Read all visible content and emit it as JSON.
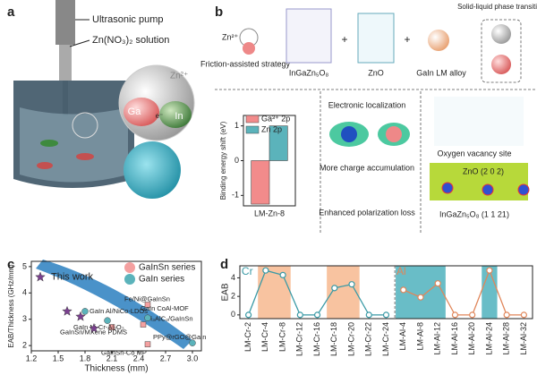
{
  "panels": {
    "a": {
      "label": "a",
      "pump": "Ultrasonic pump",
      "solution": "Zn(NO₃)₂ solution",
      "ion": "Zn²⁺",
      "ga": "Ga",
      "electron": "e⁻",
      "in": "In"
    },
    "b": {
      "label": "b",
      "ion": "Zn²⁺",
      "strategy": "Friction-assisted strategy",
      "compound": "InGaZn₅O₈",
      "plus": "+",
      "zno": "ZnO",
      "alloy": "GaIn LM alloy",
      "transition": "Solid-liquid phase transition",
      "localization": "Electronic localization",
      "charge": "More charge accumulation",
      "polarization": "Enhanced polarization loss",
      "vacancy": "Oxygen vacancy site",
      "zno_plane": "ZnO (2 0 2)",
      "compound_plane": "InGaZn₅O₈ (1 1 21)"
    },
    "c": {
      "label": "c"
    },
    "d": {
      "label": "d"
    }
  },
  "chart_data": [
    {
      "type": "bar",
      "ylabel": "Binding energy shift (eV)",
      "categories": [
        "LM-Zn-8"
      ],
      "series": [
        {
          "name": "Ga³⁺ 2p",
          "color": "#f28b8b",
          "values": [
            -1.25
          ]
        },
        {
          "name": "Zn 2p",
          "color": "#5bb3bb",
          "values": [
            1.0
          ]
        }
      ],
      "ylim": [
        -1.3,
        1.3
      ],
      "yticks": [
        -1,
        0,
        1
      ]
    },
    {
      "type": "scatter",
      "xlabel": "Thickness (mm)",
      "ylabel": "EAB/Thickness (GHz/mm)",
      "series": [
        {
          "name": "GaInSn series",
          "color": "#f4a0a0",
          "marker": "square",
          "x": [
            2.5,
            2.45,
            2.1,
            2.5
          ],
          "values": [
            3.55,
            2.8,
            2.7,
            2.05
          ],
          "labels": [
            "Fe/Ni@GaInSn",
            "Ti₃AlC₂/GaInSn",
            "GaInSn/MXene PDMS",
            "GaInSn-Co MP"
          ]
        },
        {
          "name": "GaIn series",
          "color": "#5bb3bb",
          "marker": "circle",
          "x": [
            1.8,
            2.5,
            2.05,
            3.0
          ],
          "values": [
            3.3,
            3.05,
            2.95,
            2.1
          ],
          "labels": [
            "GaIn Al/NiCo-LDOs",
            "GaIn CoAl-MOF",
            "GaIn Ni-Cr-Al₂O₃",
            "PPy@rGO@GaIn"
          ]
        },
        {
          "name": "This work",
          "color": "#7a3f8f",
          "marker": "star",
          "x": [
            1.3,
            1.6,
            1.75,
            1.9
          ],
          "values": [
            4.6,
            3.3,
            3.1,
            2.65
          ]
        }
      ],
      "xlim": [
        1.2,
        3.1
      ],
      "xticks": [
        1.2,
        1.5,
        1.8,
        2.1,
        2.4,
        2.7,
        {
          "value": 3,
          "label": "3.0"
        }
      ],
      "ylim": [
        1.8,
        5.2
      ],
      "yticks": [
        2,
        3,
        4,
        5
      ]
    },
    {
      "type": "line",
      "ylabel": "EAB",
      "categories": [
        "LM-Cr-2",
        "LM-Cr-4",
        "LM-Cr-8",
        "LM-Cr-12",
        "LM-Cr-16",
        "LM-Cr-18",
        "LM-Cr-20",
        "LM-Cr-22",
        "LM-Cr-24",
        "LM-Al-4",
        "LM-Al-8",
        "LM-Al-12",
        "LM-Al-16",
        "LM-Al-20",
        "LM-Al-24",
        "LM-Al-28",
        "LM-Al-32"
      ],
      "series": [
        {
          "name": "Cr",
          "color": "#3a9aa6",
          "values": [
            0,
            4.8,
            4.3,
            0,
            0,
            2.9,
            3.3,
            0,
            0,
            null,
            null,
            null,
            null,
            null,
            null,
            null,
            null
          ]
        },
        {
          "name": "Al",
          "color": "#e0865a",
          "values": [
            null,
            null,
            null,
            null,
            null,
            null,
            null,
            null,
            null,
            2.7,
            1.9,
            3.4,
            0,
            0,
            4.8,
            0,
            0
          ]
        }
      ],
      "ylim": [
        -0.4,
        5.3
      ],
      "yticks": [
        0,
        2,
        4
      ]
    }
  ]
}
